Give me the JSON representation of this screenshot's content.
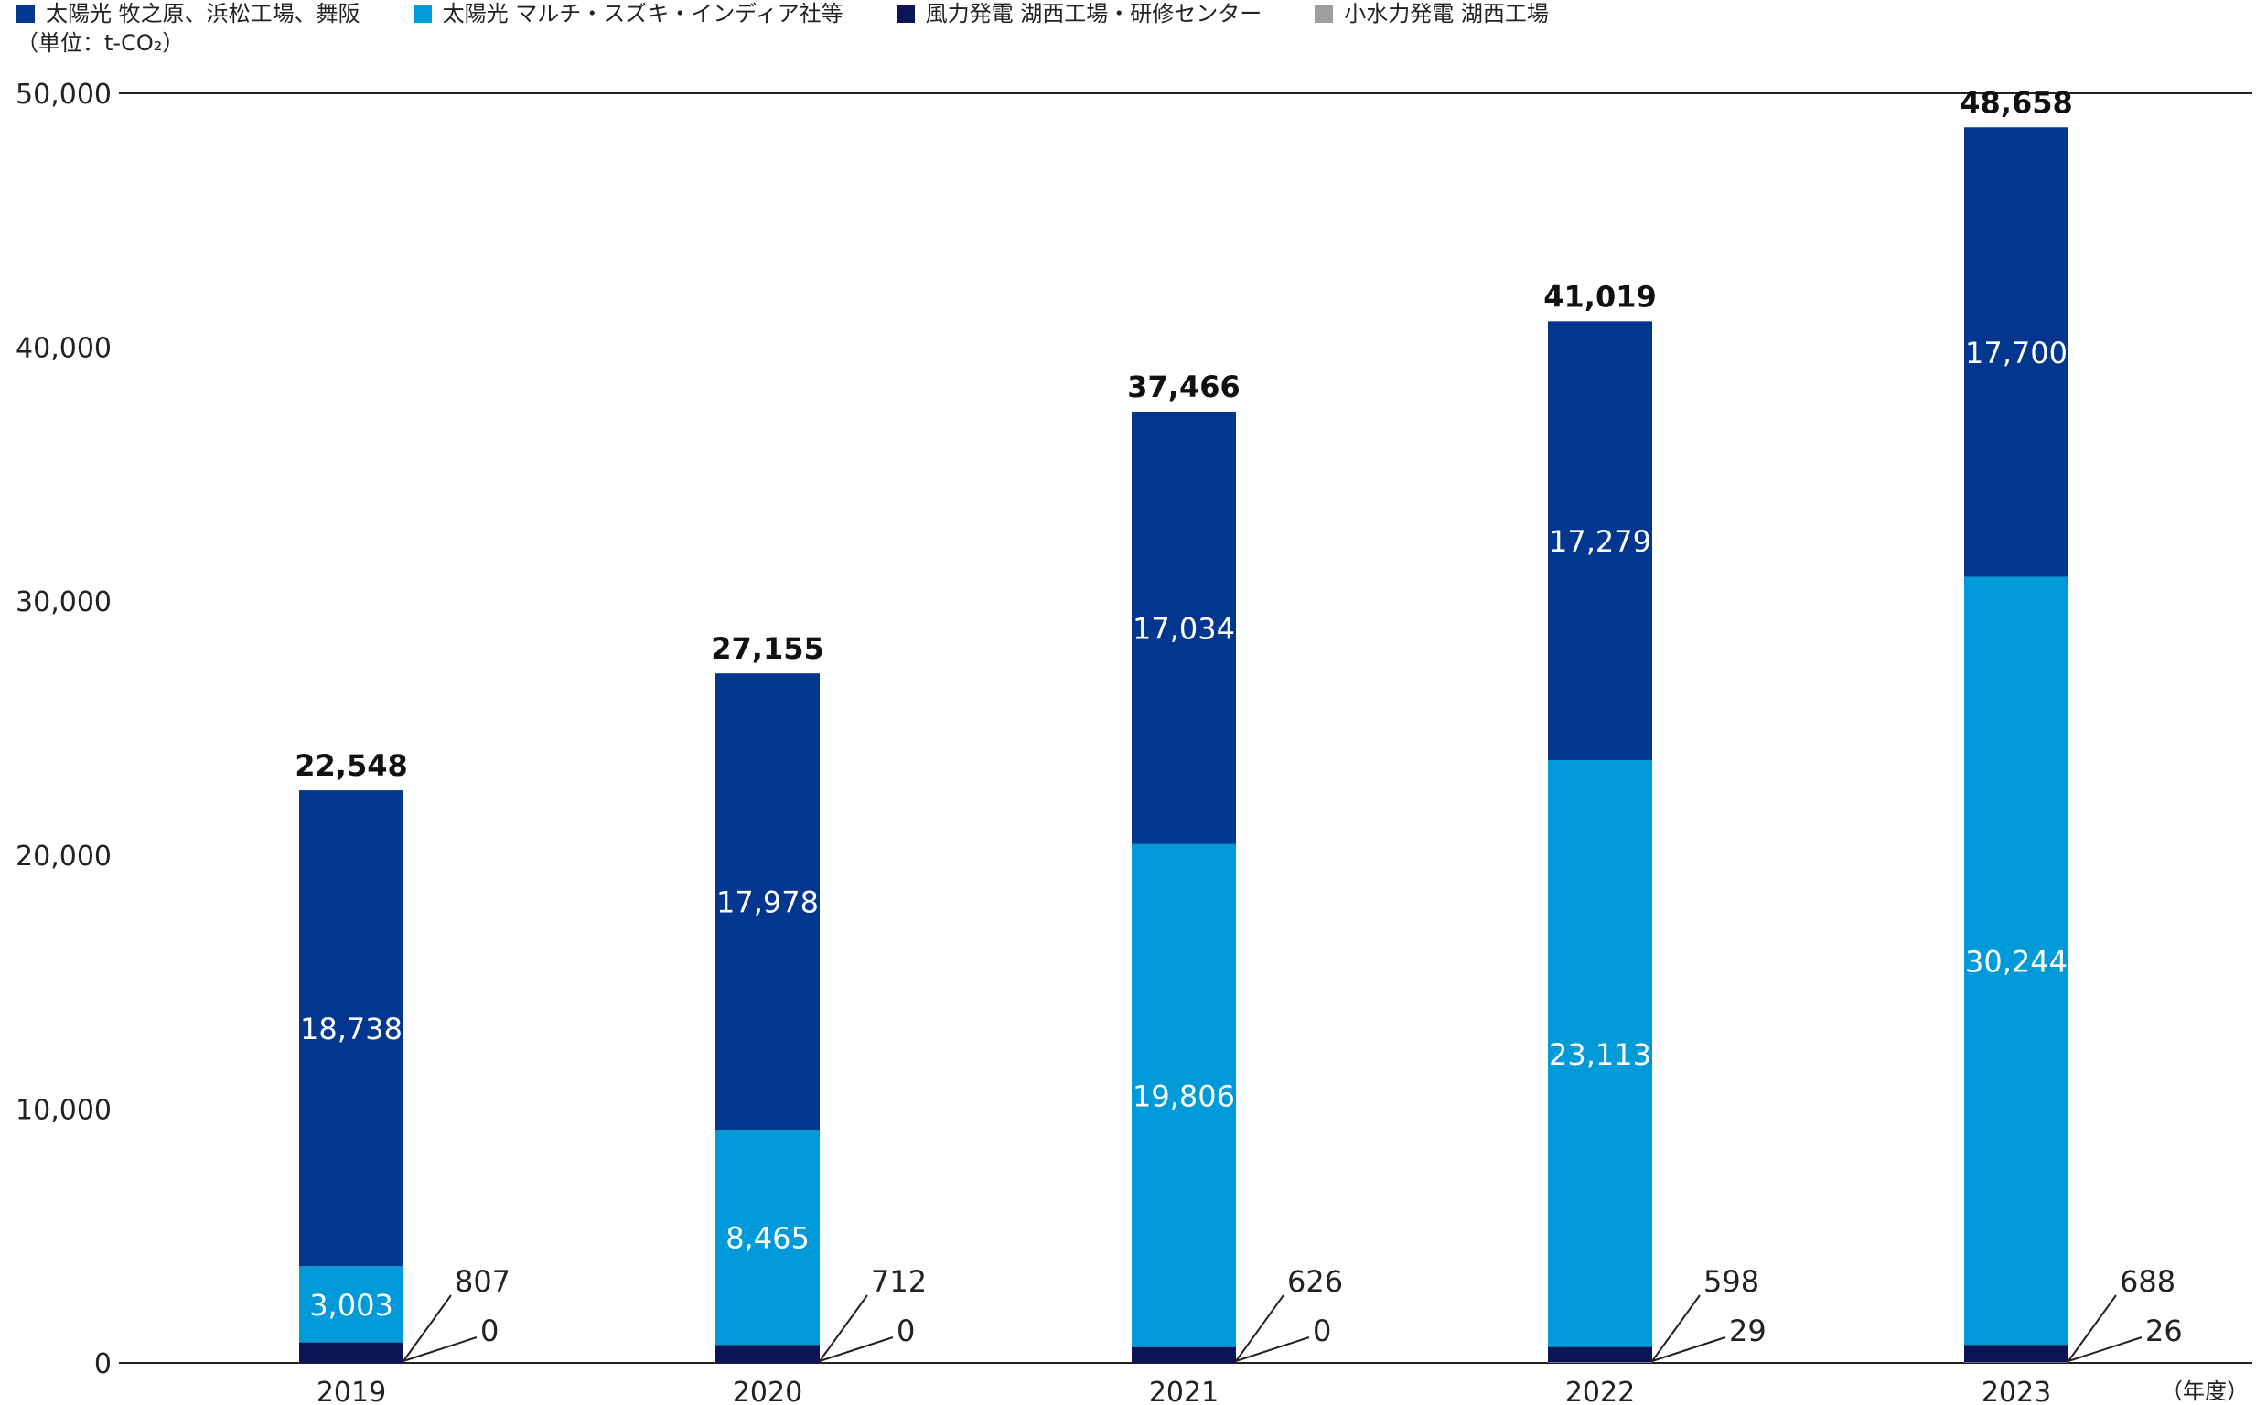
{
  "legend": [
    {
      "label": "太陽光 牧之原、浜松工場、舞阪",
      "color": "#03368f"
    },
    {
      "label": "太陽光 マルチ・スズキ・インディア社等",
      "color": "#009ad9"
    },
    {
      "label": "風力発電 湖西工場・研修センター",
      "color": "#0a1456"
    },
    {
      "label": "小水力発電 湖西工場",
      "color": "#9e9e9e"
    }
  ],
  "unit_label": "（単位：t-CO₂）",
  "x_unit_label": "（年度）",
  "chart_data": {
    "type": "bar",
    "stacked": true,
    "categories": [
      "2019",
      "2020",
      "2021",
      "2022",
      "2023"
    ],
    "series": [
      {
        "name": "小水力発電 湖西工場",
        "color": "#9e9e9e",
        "values": [
          0,
          0,
          0,
          29,
          26
        ]
      },
      {
        "name": "風力発電 湖西工場・研修センター",
        "color": "#0a1456",
        "values": [
          807,
          712,
          626,
          598,
          688
        ]
      },
      {
        "name": "太陽光 マルチ・スズキ・インディア社等",
        "color": "#009ad9",
        "values": [
          3003,
          8465,
          19806,
          23113,
          30244
        ]
      },
      {
        "name": "太陽光 牧之原、浜松工場、舞阪",
        "color": "#03368f",
        "values": [
          18738,
          17978,
          17034,
          17279,
          17700
        ]
      }
    ],
    "totals": [
      "22,548",
      "27,155",
      "37,466",
      "41,019",
      "48,658"
    ],
    "segment_labels": {
      "solar_domestic": [
        "18,738",
        "17,978",
        "17,034",
        "17,279",
        "17,700"
      ],
      "solar_india": [
        "3,003",
        "8,465",
        "19,806",
        "23,113",
        "30,244"
      ]
    },
    "callouts": {
      "wind": [
        "807",
        "712",
        "626",
        "598",
        "688"
      ],
      "hydro": [
        "0",
        "0",
        "0",
        "29",
        "26"
      ]
    },
    "yticks": [
      "0",
      "10,000",
      "20,000",
      "30,000",
      "40,000",
      "50,000"
    ],
    "ytick_values": [
      0,
      10000,
      20000,
      30000,
      40000,
      50000
    ],
    "ylim": [
      0,
      50000
    ],
    "grid": false,
    "legend_position": "top-left"
  }
}
